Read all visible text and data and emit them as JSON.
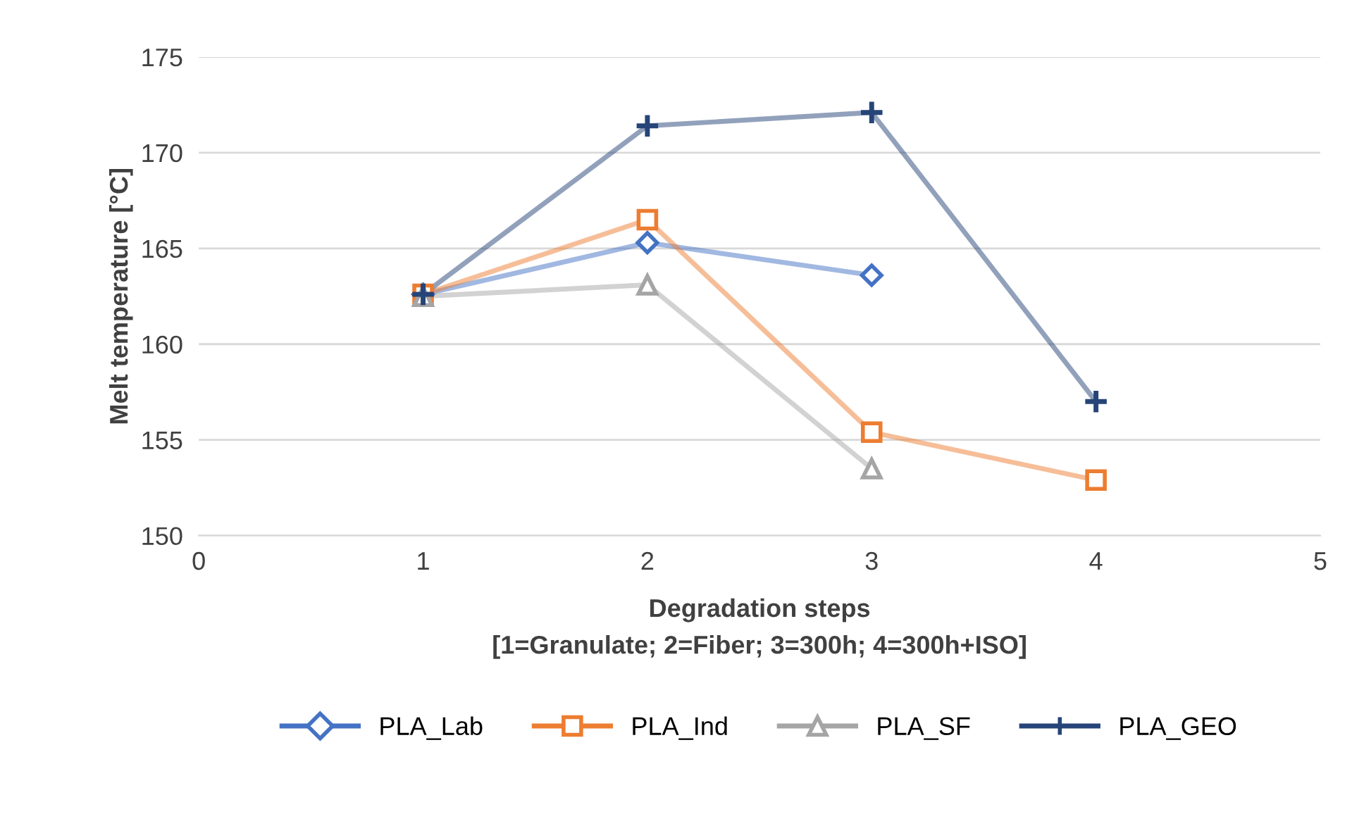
{
  "chart_data": {
    "type": "line",
    "xlabel": "Degradation steps\n[1=Granulate; 2=Fiber; 3=300h; 4=300h+ISO]",
    "ylabel": "Melt temperature [°C]",
    "xlim": [
      0,
      5
    ],
    "xticks": [
      0,
      1,
      2,
      3,
      4,
      5
    ],
    "ylim": [
      150,
      175
    ],
    "yticks": [
      150,
      155,
      160,
      165,
      170,
      175
    ],
    "grid": "y",
    "legend": "bottom",
    "line_style": "solid",
    "series": [
      {
        "name": "PLA_Lab",
        "color": "#4472c4",
        "marker": "diamond",
        "x": [
          1,
          2,
          3
        ],
        "values": [
          162.6,
          165.3,
          163.6
        ]
      },
      {
        "name": "PLA_Ind",
        "color": "#ed7d31",
        "marker": "square",
        "x": [
          1,
          2,
          3,
          4
        ],
        "values": [
          162.6,
          166.5,
          155.4,
          152.9
        ]
      },
      {
        "name": "PLA_SF",
        "color": "#a5a5a5",
        "marker": "triangle",
        "x": [
          1,
          2,
          3
        ],
        "values": [
          162.5,
          163.1,
          153.5
        ]
      },
      {
        "name": "PLA_GEO",
        "color": "#264478",
        "marker": "cross",
        "x": [
          1,
          2,
          3,
          4
        ],
        "values": [
          162.6,
          171.4,
          172.1,
          157.0
        ]
      }
    ]
  }
}
